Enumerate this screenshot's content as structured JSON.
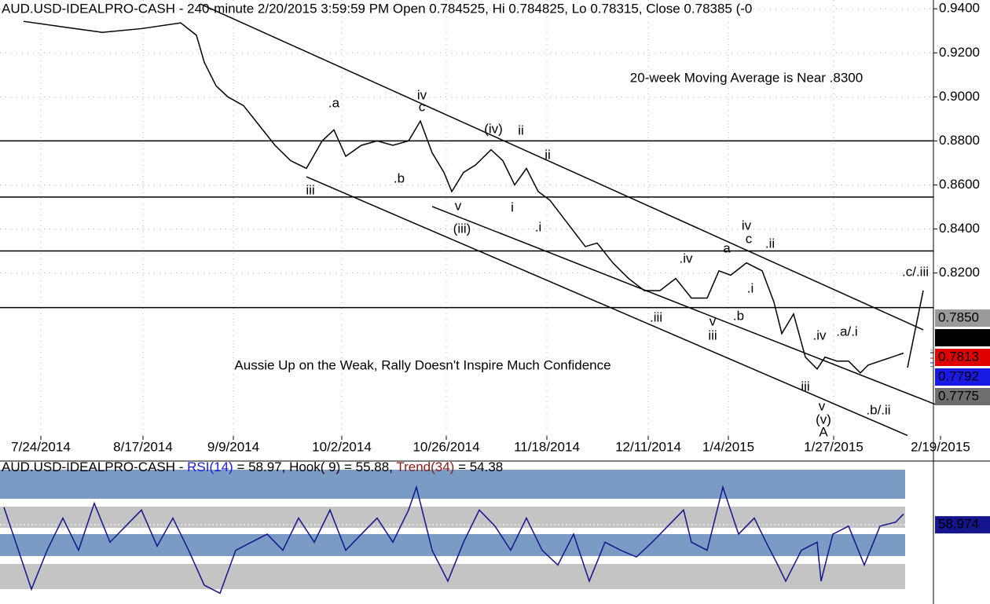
{
  "chart_data": [
    {
      "type": "line",
      "title": "AUD.USD-IDEALPRO-CASH - 240-minute 2/20/2015 3:59:59 PM Open 0.784525, Hi 0.784825, Lo 0.78315, Close 0.78385 (-0",
      "annotations": [
        {
          "text": "20-week Moving Average is Near .8300",
          "x": 950,
          "y": 0.9083
        },
        {
          "text": "Aussie Up on the Weak, Rally Doesn't Inspire Much Confidence",
          "x": 538,
          "y": 0.7778
        }
      ],
      "xlim": [
        0,
        1188
      ],
      "xticks": [
        {
          "value": 52,
          "label": "7/24/2014"
        },
        {
          "value": 182,
          "label": "8/17/2014"
        },
        {
          "value": 297,
          "label": "9/9/2014"
        },
        {
          "value": 435,
          "label": "10/2/2014"
        },
        {
          "value": 568,
          "label": "10/26/2014"
        },
        {
          "value": 696,
          "label": "11/18/2014"
        },
        {
          "value": 825,
          "label": "12/11/2014"
        },
        {
          "value": 927,
          "label": "1/4/2015"
        },
        {
          "value": 1061,
          "label": "1/27/2015"
        },
        {
          "value": 1197,
          "label": "2/19/2015"
        }
      ],
      "ylim": [
        0.746,
        0.944
      ],
      "yticks": [
        {
          "value": 0.94,
          "label": "0.9400"
        },
        {
          "value": 0.92,
          "label": "0.9200"
        },
        {
          "value": 0.9,
          "label": "0.9000"
        },
        {
          "value": 0.88,
          "label": "0.8800"
        },
        {
          "value": 0.86,
          "label": "0.8600"
        },
        {
          "value": 0.84,
          "label": "0.8400"
        },
        {
          "value": 0.82,
          "label": "0.8200"
        }
      ],
      "grid": true,
      "x": [
        30,
        80,
        130,
        180,
        230,
        250,
        260,
        275,
        290,
        310,
        330,
        350,
        370,
        390,
        410,
        425,
        440,
        460,
        480,
        500,
        520,
        535,
        550,
        565,
        575,
        590,
        605,
        625,
        640,
        655,
        670,
        685,
        700,
        715,
        730,
        745,
        760,
        780,
        800,
        820,
        840,
        860,
        880,
        900,
        915,
        930,
        950,
        970,
        985,
        995,
        1010,
        1025,
        1040,
        1050,
        1065,
        1080,
        1095,
        1105,
        1120,
        1135,
        1150
      ],
      "series": [
        {
          "color": "#000000",
          "values": [
            0.9343,
            0.9318,
            0.9293,
            0.931,
            0.9336,
            0.928,
            0.9157,
            0.905,
            0.9,
            0.896,
            0.887,
            0.878,
            0.871,
            0.8675,
            0.88,
            0.885,
            0.873,
            0.878,
            0.88,
            0.878,
            0.88,
            0.889,
            0.8746,
            0.8657,
            0.857,
            0.8657,
            0.869,
            0.876,
            0.871,
            0.86,
            0.8675,
            0.857,
            0.853,
            0.846,
            0.839,
            0.832,
            0.8336,
            0.8246,
            0.8175,
            0.812,
            0.812,
            0.8175,
            0.8086,
            0.8086,
            0.821,
            0.819,
            0.8246,
            0.821,
            0.8068,
            0.7925,
            0.8014,
            0.7818,
            0.7764,
            0.7818,
            0.78,
            0.78,
            0.7746,
            0.7782,
            0.78,
            0.7818,
            0.7836
          ]
        }
      ],
      "horizontal_lines": [
        0.88,
        0.8545,
        0.83,
        0.8043
      ],
      "trendlines": [
        [
          [
            255,
            0.9422
          ],
          [
            1175,
            0.7942
          ]
        ],
        [
          [
            550,
            0.8502
          ],
          [
            1190,
            0.7604
          ]
        ],
        [
          [
            390,
            0.8637
          ],
          [
            1155,
            0.7462
          ]
        ],
        [
          [
            1155,
            0.777
          ],
          [
            1175,
            0.812
          ]
        ]
      ],
      "wave_labels": [
        {
          "text": ".a",
          "x": 425,
          "y": 0.8969
        },
        {
          "text": "iv",
          "x": 537,
          "y": 0.9005
        },
        {
          "text": "c",
          "x": 537,
          "y": 0.8951
        },
        {
          "text": "iii",
          "x": 395,
          "y": 0.8573
        },
        {
          "text": ".b",
          "x": 508,
          "y": 0.8627
        },
        {
          "text": "(iv)",
          "x": 628,
          "y": 0.8851
        },
        {
          "text": "ii",
          "x": 663,
          "y": 0.8844
        },
        {
          "text": "ii",
          "x": 697,
          "y": 0.8734
        },
        {
          "text": "v",
          "x": 583,
          "y": 0.8502
        },
        {
          "text": "(iii)",
          "x": 588,
          "y": 0.8398
        },
        {
          "text": "i",
          "x": 652,
          "y": 0.8495
        },
        {
          "text": ".i",
          "x": 685,
          "y": 0.8405
        },
        {
          "text": ".iv",
          "x": 873,
          "y": 0.8263
        },
        {
          "text": "a",
          "x": 925,
          "y": 0.8309
        },
        {
          "text": "iv",
          "x": 950,
          "y": 0.8413
        },
        {
          "text": "c",
          "x": 953,
          "y": 0.8352
        },
        {
          "text": ".ii",
          "x": 980,
          "y": 0.833
        },
        {
          "text": ".i",
          "x": 955,
          "y": 0.8127
        },
        {
          "text": ".iii",
          "x": 835,
          "y": 0.7995
        },
        {
          "text": "v",
          "x": 907,
          "y": 0.7977
        },
        {
          "text": "iii",
          "x": 907,
          "y": 0.7913
        },
        {
          "text": ".b",
          "x": 940,
          "y": 0.8002
        },
        {
          "text": ".iv",
          "x": 1043,
          "y": 0.7913
        },
        {
          "text": ".a/.i",
          "x": 1078,
          "y": 0.7931
        },
        {
          "text": "iii",
          "x": 1025,
          "y": 0.7681
        },
        {
          "text": "v",
          "x": 1046,
          "y": 0.7592
        },
        {
          "text": "(v)",
          "x": 1048,
          "y": 0.7531
        },
        {
          "text": "A",
          "x": 1048,
          "y": 0.7474
        },
        {
          "text": ".b/.ii",
          "x": 1118,
          "y": 0.7574
        },
        {
          "text": ".c/.iii",
          "x": 1165,
          "y": 0.8202
        }
      ],
      "price_tags": [
        {
          "value": 0.785,
          "label": "0.7850",
          "color": "#9a9a9a"
        },
        {
          "value": 0.7838,
          "label": "0.7838",
          "color": "#000000"
        },
        {
          "value": 0.7813,
          "label": "0.7813",
          "color": "#e00000"
        },
        {
          "value": 0.7792,
          "label": "0.7792",
          "color": "#1a1ae6"
        },
        {
          "value": 0.7775,
          "label": "0.7775",
          "color": "#6e6e6e"
        }
      ]
    },
    {
      "type": "line",
      "title_parts": [
        {
          "text": "AUD.USD-IDEALPRO-CASH - ",
          "color": "#000000"
        },
        {
          "text": "RSI(14)",
          "color": "#1a1ae6"
        },
        {
          "text": " = 58.97, Hook( 9) = 55.88, ",
          "color": "#000000"
        },
        {
          "text": "Trend(34)",
          "color": "#8b1a1a"
        },
        {
          "text": " = 54.38",
          "color": "#000000"
        }
      ],
      "xlim": [
        0,
        1188
      ],
      "ylim": [
        0,
        100
      ],
      "x": [
        5,
        20,
        40,
        60,
        80,
        100,
        120,
        140,
        160,
        180,
        200,
        220,
        240,
        260,
        280,
        300,
        320,
        340,
        360,
        380,
        400,
        420,
        440,
        460,
        480,
        500,
        520,
        530,
        550,
        570,
        590,
        610,
        630,
        650,
        670,
        690,
        710,
        730,
        750,
        770,
        790,
        810,
        830,
        850,
        870,
        880,
        900,
        920,
        940,
        960,
        975,
        990,
        1000,
        1020,
        1040,
        1045,
        1060,
        1080,
        1100,
        1120,
        1140,
        1150
      ],
      "series": [
        {
          "color": "#14148c",
          "values": [
            72,
            46,
            11,
            40,
            64,
            40,
            75,
            46,
            58,
            70,
            43,
            64,
            40,
            14,
            8,
            40,
            46,
            52,
            40,
            64,
            46,
            70,
            40,
            52,
            64,
            46,
            70,
            87,
            40,
            17,
            46,
            70,
            58,
            40,
            64,
            40,
            29,
            52,
            17,
            46,
            40,
            35,
            46,
            58,
            70,
            46,
            40,
            87,
            52,
            64,
            46,
            29,
            17,
            40,
            46,
            17,
            52,
            58,
            29,
            58,
            61,
            67
          ]
        }
      ],
      "last_value": {
        "value": 58.974,
        "label": "58.974",
        "color": "#14148c"
      }
    }
  ]
}
